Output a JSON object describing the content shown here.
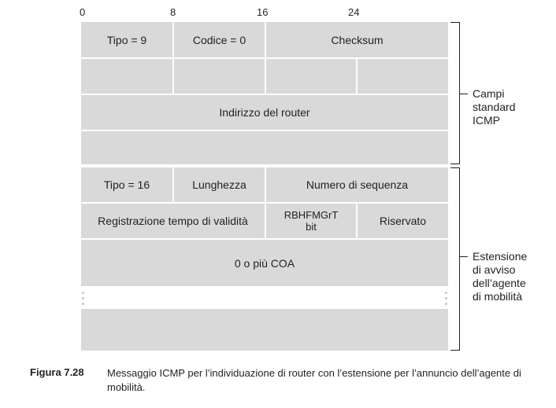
{
  "bit_scale": [
    "0",
    "8",
    "16",
    "24"
  ],
  "fields": {
    "tipo9": "Tipo = 9",
    "codice0": "Codice = 0",
    "checksum": "Checksum",
    "indirizzo_router": "Indirizzo del router",
    "tipo16": "Tipo = 16",
    "lunghezza": "Lunghezza",
    "numero_sequenza": "Numero di sequenza",
    "registrazione": "Registrazione tempo di validità",
    "flags_line1": "RBHFMGrT",
    "flags_line2": "bit",
    "riservato": "Riservato",
    "coa": "0 o più COA"
  },
  "braces": {
    "standard": [
      "Campi",
      "standard",
      "ICMP"
    ],
    "extension": [
      "Estensione",
      "di avviso",
      "dell’agente",
      "di mobilità"
    ]
  },
  "caption": {
    "label": "Figura 7.28",
    "text": "Messaggio ICMP per l’individuazione di router con l’estensione per l’annuncio dell’agente di mobilità."
  }
}
